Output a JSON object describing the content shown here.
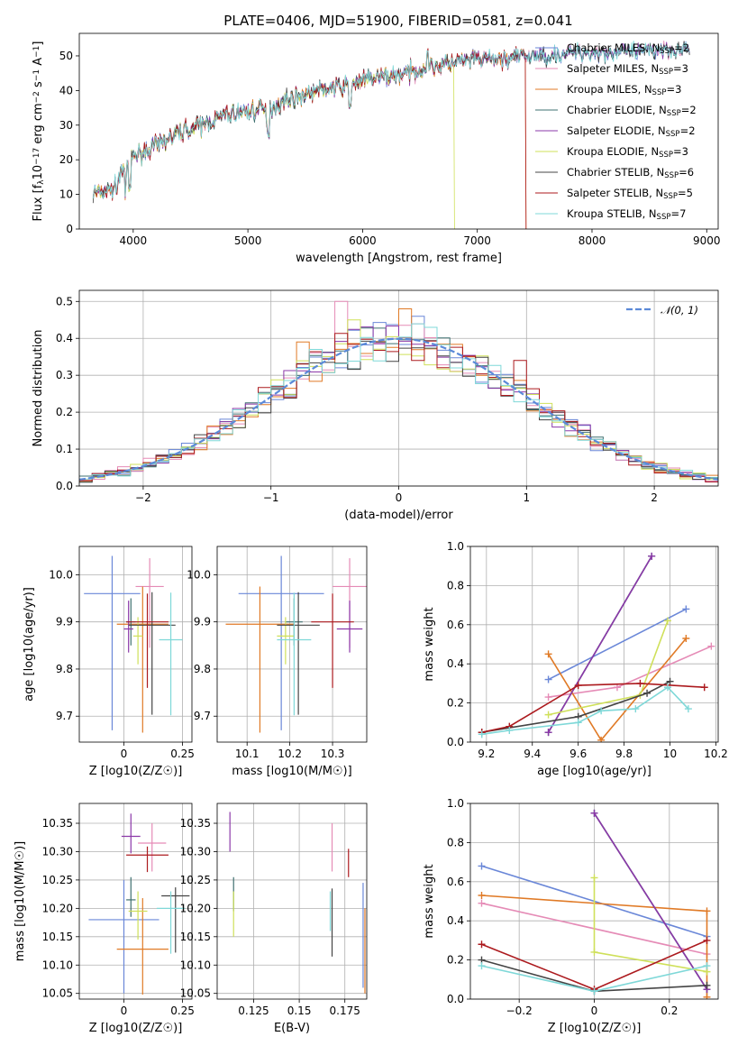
{
  "title": "PLATE=0406, MJD=51900, FIBERID=0581, z=0.041",
  "colors": {
    "Chabrier MILES": "#6a87d8",
    "Salpeter MILES": "#e58bb6",
    "Kroupa MILES": "#e07a26",
    "Chabrier ELODIE": "#3f7070",
    "Salpeter ELODIE": "#8b38a8",
    "Kroupa ELODIE": "#cfe05a",
    "Chabrier STELIB": "#444444",
    "Salpeter STELIB": "#ac1a1e",
    "Kroupa STELIB": "#7fd8d8"
  },
  "legend1": [
    {
      "label": "Chabrier MILES, N",
      "sub": "SSP",
      "eq": "=2",
      "model": "Chabrier MILES"
    },
    {
      "label": "Salpeter MILES, N",
      "sub": "SSP",
      "eq": "=3",
      "model": "Salpeter MILES"
    },
    {
      "label": "Kroupa MILES, N",
      "sub": "SSP",
      "eq": "=3",
      "model": "Kroupa MILES"
    },
    {
      "label": "Chabrier ELODIE, N",
      "sub": "SSP",
      "eq": "=2",
      "model": "Chabrier ELODIE"
    },
    {
      "label": "Salpeter ELODIE, N",
      "sub": "SSP",
      "eq": "=2",
      "model": "Salpeter ELODIE"
    },
    {
      "label": "Kroupa ELODIE, N",
      "sub": "SSP",
      "eq": "=3",
      "model": "Kroupa ELODIE"
    },
    {
      "label": "Chabrier STELIB, N",
      "sub": "SSP",
      "eq": "=6",
      "model": "Chabrier STELIB"
    },
    {
      "label": "Salpeter STELIB, N",
      "sub": "SSP",
      "eq": "=5",
      "model": "Salpeter STELIB"
    },
    {
      "label": "Kroupa STELIB, N",
      "sub": "SSP",
      "eq": "=7",
      "model": "Kroupa STELIB"
    }
  ],
  "legend2": {
    "label": "𝒩(0, 1)",
    "color": "#5b8ad8"
  },
  "chart_data": [
    {
      "type": "line",
      "name": "spectrum",
      "xlabel": "wavelength [Angstrom, rest frame]",
      "ylabel": "Flux [f_λ 10^-17 erg cm^-2 s^-1 A^-1]",
      "xlim": [
        3530,
        9100
      ],
      "ylim": [
        0,
        56.5
      ],
      "xticks": [
        4000,
        5000,
        6000,
        7000,
        8000,
        9000
      ],
      "yticks": [
        0,
        10,
        20,
        30,
        40,
        50
      ],
      "continuum": [
        [
          3650,
          10
        ],
        [
          3850,
          12
        ],
        [
          3900,
          17
        ],
        [
          4000,
          21
        ],
        [
          4200,
          24
        ],
        [
          4400,
          28
        ],
        [
          4600,
          30
        ],
        [
          4800,
          33
        ],
        [
          5000,
          34
        ],
        [
          5200,
          35
        ],
        [
          5400,
          38
        ],
        [
          5600,
          40
        ],
        [
          5800,
          41
        ],
        [
          6000,
          43
        ],
        [
          6200,
          44
        ],
        [
          6400,
          45
        ],
        [
          6600,
          47
        ],
        [
          6800,
          48
        ],
        [
          7000,
          49
        ],
        [
          7200,
          49
        ],
        [
          7400,
          50
        ],
        [
          7600,
          50
        ],
        [
          7800,
          51
        ],
        [
          8000,
          51
        ],
        [
          8200,
          51
        ],
        [
          8400,
          51
        ],
        [
          8600,
          52
        ],
        [
          8800,
          52
        ]
      ],
      "drops": [
        {
          "model": "Kroupa ELODIE",
          "x": 6800
        },
        {
          "model": "Salpeter STELIB",
          "x": 7420
        },
        {
          "model": "Kroupa MILES",
          "x": 7420
        }
      ]
    },
    {
      "type": "histogram",
      "name": "residuals",
      "xlabel": "(data-model)/error",
      "ylabel": "Normed distribution",
      "xlim": [
        -2.5,
        2.5
      ],
      "ylim": [
        0,
        0.53
      ],
      "xticks": [
        -2,
        -1,
        0,
        1,
        2
      ],
      "yticks": [
        0,
        0.1,
        0.2,
        0.3,
        0.4,
        0.5
      ],
      "bin_width": 0.1,
      "peak_bars": [
        {
          "x": -0.5,
          "y": 0.5,
          "model": "Salpeter MILES"
        },
        {
          "x": 0.0,
          "y": 0.48,
          "model": "Kroupa MILES"
        },
        {
          "x": -0.8,
          "y": 0.39,
          "model": "Kroupa MILES"
        },
        {
          "x": 0.9,
          "y": 0.34,
          "model": "Salpeter STELIB"
        },
        {
          "x": -0.4,
          "y": 0.45,
          "model": "Kroupa ELODIE"
        },
        {
          "x": 0.1,
          "y": 0.46,
          "model": "Chabrier MILES"
        }
      ]
    },
    {
      "type": "errorbar",
      "name": "age-vs-Z",
      "xlabel": "Z [log10(Z/Z☉)]",
      "ylabel": "age [log10(age/yr)]",
      "xlim": [
        -0.19,
        0.29
      ],
      "ylim": [
        9.645,
        10.06
      ],
      "xticks": [
        0.0,
        0.25
      ],
      "yticks": [
        9.7,
        9.8,
        9.9,
        10.0
      ],
      "points": [
        {
          "model": "Chabrier MILES",
          "x": -0.05,
          "y": 9.96,
          "xerr": 0.12,
          "yerr_lo": 0.29,
          "yerr_hi": 0.08
        },
        {
          "model": "Salpeter MILES",
          "x": 0.11,
          "y": 9.975,
          "xerr": 0.06,
          "yerr_lo": 0.13,
          "yerr_hi": 0.06
        },
        {
          "model": "Kroupa MILES",
          "x": 0.08,
          "y": 9.895,
          "xerr": 0.11,
          "yerr_lo": 0.23,
          "yerr_hi": 0.08
        },
        {
          "model": "Chabrier ELODIE",
          "x": 0.03,
          "y": 9.9,
          "xerr": 0.02,
          "yerr_lo": 0.05,
          "yerr_hi": 0.05
        },
        {
          "model": "Salpeter ELODIE",
          "x": 0.02,
          "y": 9.885,
          "xerr": 0.02,
          "yerr_lo": 0.05,
          "yerr_hi": 0.06
        },
        {
          "model": "Kroupa ELODIE",
          "x": 0.06,
          "y": 9.87,
          "xerr": 0.02,
          "yerr_lo": 0.06,
          "yerr_hi": 0.04
        },
        {
          "model": "Chabrier STELIB",
          "x": 0.12,
          "y": 9.893,
          "xerr": 0.1,
          "yerr_lo": 0.19,
          "yerr_hi": 0.07
        },
        {
          "model": "Salpeter STELIB",
          "x": 0.1,
          "y": 9.9,
          "xerr": 0.09,
          "yerr_lo": 0.14,
          "yerr_hi": 0.06
        },
        {
          "model": "Kroupa STELIB",
          "x": 0.2,
          "y": 9.862,
          "xerr": 0.05,
          "yerr_lo": 0.16,
          "yerr_hi": 0.1
        }
      ]
    },
    {
      "type": "errorbar",
      "name": "age-vs-mass",
      "xlabel": "mass [log10(M/M☉)]",
      "ylabel": "",
      "xlim": [
        10.03,
        10.38
      ],
      "ylim": [
        9.645,
        10.06
      ],
      "xticks": [
        10.1,
        10.2,
        10.3
      ],
      "yticks": [
        9.7,
        9.8,
        9.9,
        10.0
      ],
      "points": [
        {
          "model": "Chabrier MILES",
          "x": 10.18,
          "y": 9.96,
          "xerr": 0.1,
          "yerr_lo": 0.29,
          "yerr_hi": 0.08
        },
        {
          "model": "Salpeter MILES",
          "x": 10.34,
          "y": 9.975,
          "xerr": 0.04,
          "yerr_lo": 0.13,
          "yerr_hi": 0.06
        },
        {
          "model": "Kroupa MILES",
          "x": 10.13,
          "y": 9.895,
          "xerr": 0.08,
          "yerr_lo": 0.23,
          "yerr_hi": 0.08
        },
        {
          "model": "Chabrier ELODIE",
          "x": 10.21,
          "y": 9.9,
          "xerr": 0.02,
          "yerr_lo": 0.05,
          "yerr_hi": 0.05
        },
        {
          "model": "Salpeter ELODIE",
          "x": 10.34,
          "y": 9.885,
          "xerr": 0.03,
          "yerr_lo": 0.05,
          "yerr_hi": 0.06
        },
        {
          "model": "Kroupa ELODIE",
          "x": 10.19,
          "y": 9.87,
          "xerr": 0.02,
          "yerr_lo": 0.06,
          "yerr_hi": 0.04
        },
        {
          "model": "Chabrier STELIB",
          "x": 10.22,
          "y": 9.893,
          "xerr": 0.05,
          "yerr_lo": 0.19,
          "yerr_hi": 0.07
        },
        {
          "model": "Salpeter STELIB",
          "x": 10.3,
          "y": 9.9,
          "xerr": 0.05,
          "yerr_lo": 0.14,
          "yerr_hi": 0.06
        },
        {
          "model": "Kroupa STELIB",
          "x": 10.21,
          "y": 9.862,
          "xerr": 0.04,
          "yerr_lo": 0.16,
          "yerr_hi": 0.1
        }
      ]
    },
    {
      "type": "line",
      "name": "weight-vs-age",
      "xlabel": "age [log10(age/yr)]",
      "ylabel": "mass weight",
      "xlim": [
        9.13,
        10.21
      ],
      "ylim": [
        0,
        1
      ],
      "xticks": [
        9.2,
        9.4,
        9.6,
        9.8,
        10.0,
        10.2
      ],
      "yticks": [
        0.0,
        0.2,
        0.4,
        0.6,
        0.8,
        1.0
      ],
      "series": [
        {
          "model": "Chabrier MILES",
          "x": [
            9.47,
            10.07
          ],
          "y": [
            0.32,
            0.68
          ]
        },
        {
          "model": "Salpeter MILES",
          "x": [
            9.47,
            9.77,
            10.18
          ],
          "y": [
            0.23,
            0.28,
            0.49
          ]
        },
        {
          "model": "Kroupa MILES",
          "x": [
            9.47,
            9.7,
            10.07
          ],
          "y": [
            0.45,
            0.01,
            0.53
          ]
        },
        {
          "model": "Chabrier ELODIE",
          "x": [
            9.47,
            9.92
          ],
          "y": [
            0.05,
            0.95
          ]
        },
        {
          "model": "Salpeter ELODIE",
          "x": [
            9.47,
            9.92
          ],
          "y": [
            0.05,
            0.95
          ]
        },
        {
          "model": "Kroupa ELODIE",
          "x": [
            9.47,
            9.87,
            9.99
          ],
          "y": [
            0.14,
            0.24,
            0.62
          ]
        },
        {
          "model": "Chabrier STELIB",
          "x": [
            9.18,
            9.6,
            9.9,
            10.0
          ],
          "y": [
            0.05,
            0.13,
            0.25,
            0.31
          ]
        },
        {
          "model": "Salpeter STELIB",
          "x": [
            9.18,
            9.3,
            9.6,
            9.87,
            10.15
          ],
          "y": [
            0.05,
            0.08,
            0.29,
            0.3,
            0.28
          ]
        },
        {
          "model": "Kroupa STELIB",
          "x": [
            9.18,
            9.3,
            9.6,
            9.7,
            9.85,
            9.99,
            10.08
          ],
          "y": [
            0.04,
            0.06,
            0.1,
            0.16,
            0.17,
            0.28,
            0.17
          ]
        }
      ]
    },
    {
      "type": "errorbar",
      "name": "mass-vs-Z",
      "xlabel": "Z [log10(Z/Z☉)]",
      "ylabel": "mass [log10(M/M☉)]",
      "xlim": [
        -0.19,
        0.29
      ],
      "ylim": [
        10.04,
        10.385
      ],
      "xticks": [
        0.0,
        0.25
      ],
      "yticks": [
        10.05,
        10.1,
        10.15,
        10.2,
        10.25,
        10.3,
        10.35
      ],
      "points": [
        {
          "model": "Chabrier MILES",
          "x": 0.0,
          "y": 10.18,
          "xerr": 0.15,
          "yerr_lo": 0.13,
          "yerr_hi": 0.07
        },
        {
          "model": "Salpeter MILES",
          "x": 0.12,
          "y": 10.315,
          "xerr": 0.06,
          "yerr_lo": 0.05,
          "yerr_hi": 0.035
        },
        {
          "model": "Kroupa MILES",
          "x": 0.08,
          "y": 10.128,
          "xerr": 0.11,
          "yerr_lo": 0.08,
          "yerr_hi": 0.09
        },
        {
          "model": "Chabrier ELODIE",
          "x": 0.03,
          "y": 10.215,
          "xerr": 0.02,
          "yerr_lo": 0.03,
          "yerr_hi": 0.04
        },
        {
          "model": "Salpeter ELODIE",
          "x": 0.03,
          "y": 10.327,
          "xerr": 0.04,
          "yerr_lo": 0.03,
          "yerr_hi": 0.04
        },
        {
          "model": "Kroupa ELODIE",
          "x": 0.06,
          "y": 10.195,
          "xerr": 0.04,
          "yerr_lo": 0.05,
          "yerr_hi": 0.035
        },
        {
          "model": "Chabrier STELIB",
          "x": 0.22,
          "y": 10.222,
          "xerr": 0.06,
          "yerr_lo": 0.1,
          "yerr_hi": 0.015
        },
        {
          "model": "Salpeter STELIB",
          "x": 0.1,
          "y": 10.294,
          "xerr": 0.09,
          "yerr_lo": 0.03,
          "yerr_hi": 0.015
        },
        {
          "model": "Kroupa STELIB",
          "x": 0.2,
          "y": 10.2,
          "xerr": 0.06,
          "yerr_lo": 0.08,
          "yerr_hi": 0.03
        }
      ]
    },
    {
      "type": "errorbar",
      "name": "mass-vs-EBV",
      "xlabel": "E(B-V)",
      "ylabel": "",
      "xlim": [
        0.105,
        0.187
      ],
      "ylim": [
        10.04,
        10.385
      ],
      "xticks": [
        0.125,
        0.15,
        0.175
      ],
      "yticks": [
        10.05,
        10.1,
        10.15,
        10.2,
        10.25,
        10.3,
        10.35
      ],
      "points": [
        {
          "model": "Chabrier MILES",
          "x": 0.185,
          "y": 10.2,
          "xerr": 0,
          "yerr_lo": 0.14,
          "yerr_hi": 0.045
        },
        {
          "model": "Salpeter MILES",
          "x": 0.168,
          "y": 10.31,
          "xerr": 0,
          "yerr_lo": 0.045,
          "yerr_hi": 0.04
        },
        {
          "model": "Kroupa MILES",
          "x": 0.186,
          "y": 10.13,
          "xerr": 0,
          "yerr_lo": 0.08,
          "yerr_hi": 0.07
        },
        {
          "model": "Chabrier ELODIE",
          "x": 0.114,
          "y": 10.225,
          "xerr": 0,
          "yerr_lo": 0.03,
          "yerr_hi": 0.03
        },
        {
          "model": "Salpeter ELODIE",
          "x": 0.112,
          "y": 10.335,
          "xerr": 0,
          "yerr_lo": 0.035,
          "yerr_hi": 0.035
        },
        {
          "model": "Kroupa ELODIE",
          "x": 0.114,
          "y": 10.19,
          "xerr": 0,
          "yerr_lo": 0.04,
          "yerr_hi": 0.04
        },
        {
          "model": "Chabrier STELIB",
          "x": 0.168,
          "y": 10.17,
          "xerr": 0,
          "yerr_lo": 0.055,
          "yerr_hi": 0.065
        },
        {
          "model": "Salpeter STELIB",
          "x": 0.177,
          "y": 10.28,
          "xerr": 0,
          "yerr_lo": 0.025,
          "yerr_hi": 0.025
        },
        {
          "model": "Kroupa STELIB",
          "x": 0.167,
          "y": 10.2,
          "xerr": 0,
          "yerr_lo": 0.04,
          "yerr_hi": 0.03
        }
      ]
    },
    {
      "type": "line",
      "name": "weight-vs-Z",
      "xlabel": "Z [log10(Z/Z☉)]",
      "ylabel": "mass weight",
      "xlim": [
        -0.33,
        0.33
      ],
      "ylim": [
        0,
        1
      ],
      "xticks": [
        -0.2,
        0.0,
        0.2
      ],
      "yticks": [
        0.0,
        0.2,
        0.4,
        0.6,
        0.8,
        1.0
      ],
      "series": [
        {
          "model": "Chabrier MILES",
          "x": [
            -0.3,
            0.3
          ],
          "y": [
            0.68,
            0.32
          ]
        },
        {
          "model": "Salpeter MILES",
          "x": [
            -0.3,
            0.3
          ],
          "y": [
            0.49,
            0.23
          ]
        },
        {
          "model": "Kroupa MILES",
          "x": [
            -0.3,
            0.3,
            0.3
          ],
          "y": [
            0.53,
            0.45,
            0.01
          ]
        },
        {
          "model": "Chabrier ELODIE",
          "x": [
            0.0,
            0.3
          ],
          "y": [
            0.95,
            0.05
          ]
        },
        {
          "model": "Salpeter ELODIE",
          "x": [
            0.0,
            0.3
          ],
          "y": [
            0.95,
            0.05
          ]
        },
        {
          "model": "Kroupa ELODIE",
          "x": [
            0.0,
            0.0,
            0.3
          ],
          "y": [
            0.62,
            0.24,
            0.14
          ]
        },
        {
          "model": "Chabrier STELIB",
          "x": [
            -0.3,
            0.0,
            0.3
          ],
          "y": [
            0.2,
            0.04,
            0.07
          ]
        },
        {
          "model": "Salpeter STELIB",
          "x": [
            -0.3,
            0.0,
            0.3
          ],
          "y": [
            0.28,
            0.05,
            0.3
          ]
        },
        {
          "model": "Kroupa STELIB",
          "x": [
            -0.3,
            0.0,
            0.3
          ],
          "y": [
            0.17,
            0.04,
            0.17
          ]
        }
      ]
    }
  ]
}
